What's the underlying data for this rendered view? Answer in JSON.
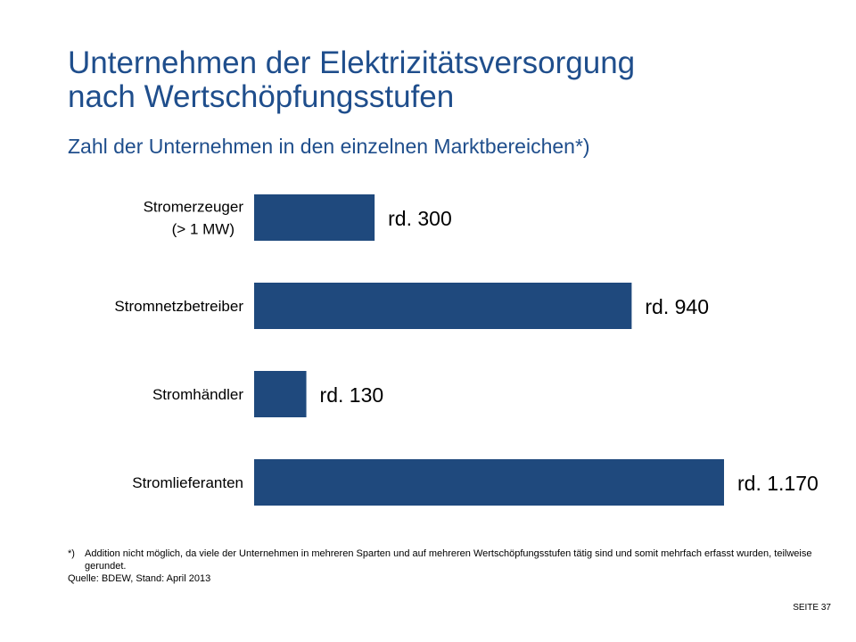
{
  "title_lines": [
    "Unternehmen der Elektrizitätsversorgung",
    "nach Wertschöpfungsstufen"
  ],
  "subtitle": "Zahl der Unternehmen in den einzelnen Marktbereichen*)",
  "chart_data": {
    "type": "bar",
    "orientation": "horizontal",
    "categories": [
      [
        "Stromerzeuger",
        "(> 1 MW)"
      ],
      [
        "Stromnetzbetreiber"
      ],
      [
        "Stromhändler"
      ],
      [
        "Stromlieferanten"
      ]
    ],
    "values": [
      300,
      940,
      130,
      1170
    ],
    "data_labels": [
      "rd. 300",
      "rd. 940",
      "rd. 130",
      "rd. 1.170"
    ],
    "bar_color": "#1F497D",
    "xlim": [
      0,
      1170
    ],
    "grid": false,
    "legend": "none"
  },
  "footnote": {
    "mark": "*)",
    "text": "Addition nicht möglich, da viele der Unternehmen  in mehreren  Sparten und auf mehreren  Wertschöpfungsstufen tätig sind und somit mehrfach erfasst wurden, teilweise gerundet.",
    "source": "Quelle:  BDEW, Stand: April 2013"
  },
  "page_number": "SEITE 37"
}
